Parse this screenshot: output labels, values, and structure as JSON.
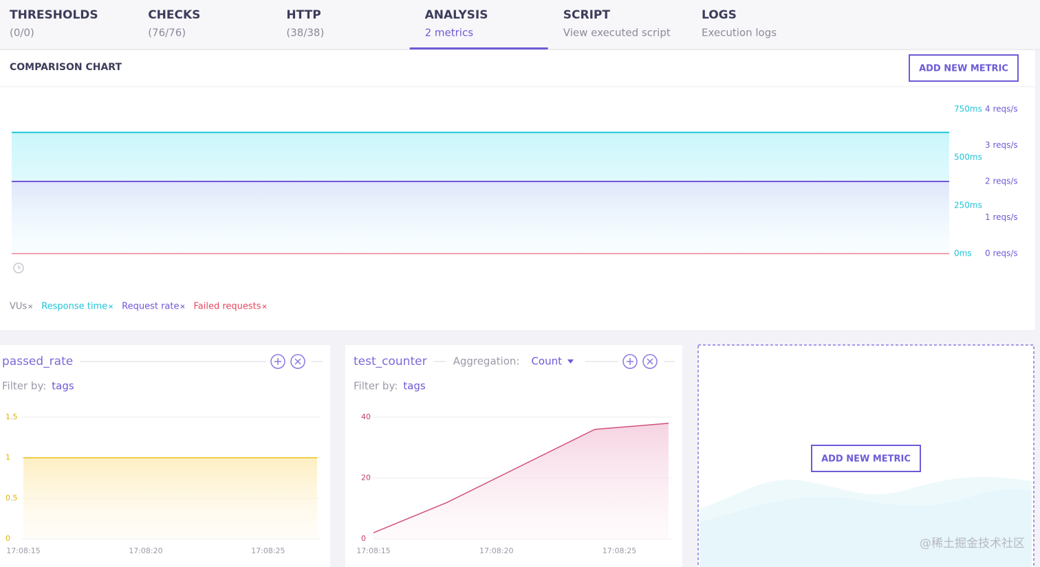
{
  "tabs": [
    {
      "title": "THRESHOLDS",
      "subtitle": "(0/0)"
    },
    {
      "title": "CHECKS",
      "subtitle": "(76/76)"
    },
    {
      "title": "HTTP",
      "subtitle": "(38/38)"
    },
    {
      "title": "ANALYSIS",
      "subtitle": "2 metrics",
      "selected": true
    },
    {
      "title": "SCRIPT",
      "subtitle": "View executed script"
    },
    {
      "title": "LOGS",
      "subtitle": "Execution logs"
    }
  ],
  "comparison": {
    "title": "COMPARISON CHART",
    "button": "ADD NEW METRIC",
    "chart": {
      "type": "line",
      "series": [
        {
          "name": "VUs",
          "color": "#8a8a9a",
          "values": [
            null,
            null
          ]
        },
        {
          "name": "Response time",
          "color": "#1fc3d7",
          "values": [
            630,
            630
          ]
        },
        {
          "name": "Request rate",
          "color": "#7256d8",
          "values": [
            2,
            2
          ],
          "axis": "y2"
        },
        {
          "name": "Failed requests",
          "color": "#e5475f",
          "values": [
            0,
            0
          ],
          "axis": "y2"
        }
      ],
      "ylim": [
        0,
        750
      ],
      "yticks": [
        {
          "value": 0,
          "label": "0ms"
        },
        {
          "value": 250,
          "label": "250ms"
        },
        {
          "value": 500,
          "label": "500ms"
        },
        {
          "value": 750,
          "label": "750ms"
        }
      ],
      "y2lim": [
        0,
        4
      ],
      "y2ticks": [
        {
          "value": 0,
          "label": "0 reqs/s"
        },
        {
          "value": 1,
          "label": "1 reqs/s"
        },
        {
          "value": 2,
          "label": "2 reqs/s"
        },
        {
          "value": 3,
          "label": "3 reqs/s"
        },
        {
          "value": 4,
          "label": "4 reqs/s"
        }
      ]
    }
  },
  "metrics": [
    {
      "name": "passed_rate",
      "filter_label": "Filter by:",
      "filter_value": "tags",
      "chart": {
        "type": "area",
        "color": "#e8c21a",
        "tick_color": "#e0b400",
        "x": [
          "17:08:15",
          "17:08:27"
        ],
        "values": [
          1,
          1
        ],
        "xlim": [
          "17:08:15",
          "17:08:27"
        ],
        "xticks": [
          "17:08:15",
          "17:08:20",
          "17:08:25"
        ],
        "ylim": [
          0,
          1.5
        ],
        "yticks": [
          0,
          0.5,
          1,
          1.5
        ],
        "grid": true
      }
    },
    {
      "name": "test_counter",
      "aggregation_label": "Aggregation:",
      "aggregation": "Count",
      "filter_label": "Filter by:",
      "filter_value": "tags",
      "chart": {
        "type": "area",
        "color": "#d0507a",
        "tick_color": "#c0406a",
        "x": [
          "17:08:15",
          "17:08:18",
          "17:08:24",
          "17:08:27"
        ],
        "values": [
          2,
          12,
          36,
          38
        ],
        "xlim": [
          "17:08:15",
          "17:08:27"
        ],
        "xticks": [
          "17:08:15",
          "17:08:20",
          "17:08:25"
        ],
        "ylim": [
          0,
          40
        ],
        "yticks": [
          0,
          20,
          40
        ],
        "grid": true
      }
    }
  ],
  "add_panel": {
    "button": "ADD NEW METRIC"
  },
  "watermark": "@稀土掘金技术社区"
}
